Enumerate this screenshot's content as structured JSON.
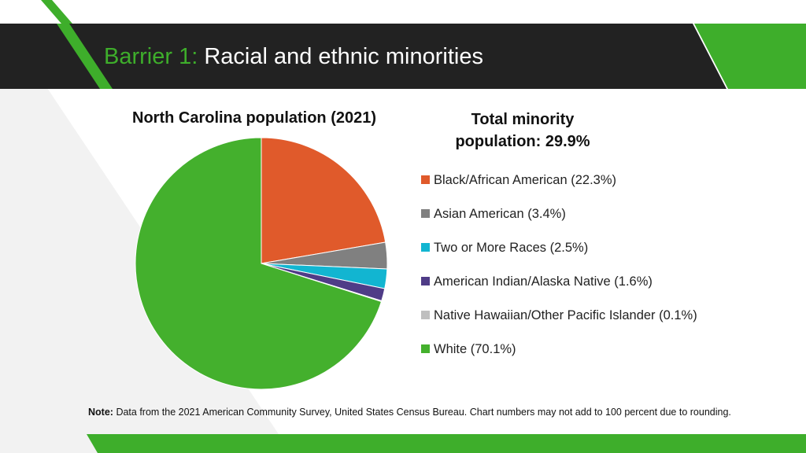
{
  "header": {
    "prefix": "Barrier 1:",
    "title": "Racial and ethnic minorities"
  },
  "colors": {
    "banner": "#222222",
    "accent_green": "#3eae2b",
    "light_gray": "#f2f2f2"
  },
  "total_minority": "Total minority population: 29.9%",
  "note": {
    "label": "Note:",
    "text": "Data from the 2021 American Community Survey, United States Census Bureau. Chart numbers may not add to 100 percent due to rounding."
  },
  "chart_data": {
    "type": "pie",
    "title": "North Carolina population (2021)",
    "legend_position": "right",
    "slices": [
      {
        "label": "Black/African American (22.3%)",
        "value": 22.3,
        "color": "#e05a2b"
      },
      {
        "label": "Asian American (3.4%)",
        "value": 3.4,
        "color": "#808080"
      },
      {
        "label": "Two or More Races (2.5%)",
        "value": 2.5,
        "color": "#12b5d1"
      },
      {
        "label": "American Indian/Alaska Native (1.6%)",
        "value": 1.6,
        "color": "#4f3c87"
      },
      {
        "label": "Native Hawaiian/Other Pacific Islander (0.1%)",
        "value": 0.1,
        "color": "#bfbfbf"
      },
      {
        "label": "White (70.1%)",
        "value": 70.1,
        "color": "#44b02d"
      }
    ]
  }
}
